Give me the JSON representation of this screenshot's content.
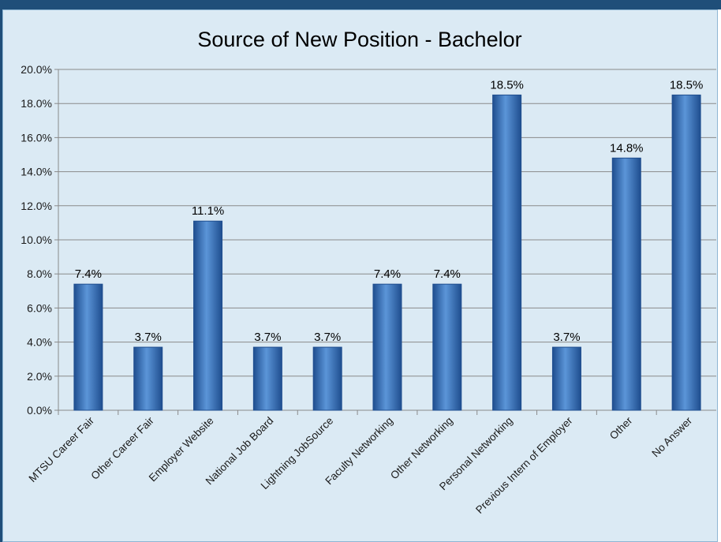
{
  "chart_data": {
    "type": "bar",
    "title": "Source of New Position - Bachelor",
    "categories": [
      "MTSU Career Fair",
      "Other Career Fair",
      "Employer Website",
      "National Job Board",
      "Lightning JobSource",
      "Faculty Networking",
      "Other Networking",
      "Personal Networking",
      "Previous Intern of Employer",
      "Other",
      "No Answer"
    ],
    "values": [
      7.4,
      3.7,
      11.1,
      3.7,
      3.7,
      7.4,
      7.4,
      18.5,
      3.7,
      14.8,
      18.5
    ],
    "data_labels": [
      "7.4%",
      "3.7%",
      "11.1%",
      "3.7%",
      "3.7%",
      "7.4%",
      "7.4%",
      "18.5%",
      "3.7%",
      "14.8%",
      "18.5%"
    ],
    "yticks": [
      0,
      2,
      4,
      6,
      8,
      10,
      12,
      14,
      16,
      18,
      20
    ],
    "ytick_labels": [
      "0.0%",
      "2.0%",
      "4.0%",
      "6.0%",
      "8.0%",
      "10.0%",
      "12.0%",
      "14.0%",
      "16.0%",
      "18.0%",
      "20.0%"
    ],
    "ylim": [
      0,
      20
    ],
    "xlabel": "",
    "ylabel": "",
    "grid": true,
    "legend": "none",
    "colors": {
      "bar": "#3a75c4",
      "bar_dark": "#1f4e8f",
      "bar_light": "#5b95d8",
      "background": "#dbeaf4",
      "grid": "#8a8a8a",
      "frame": "#1f4e79"
    }
  }
}
